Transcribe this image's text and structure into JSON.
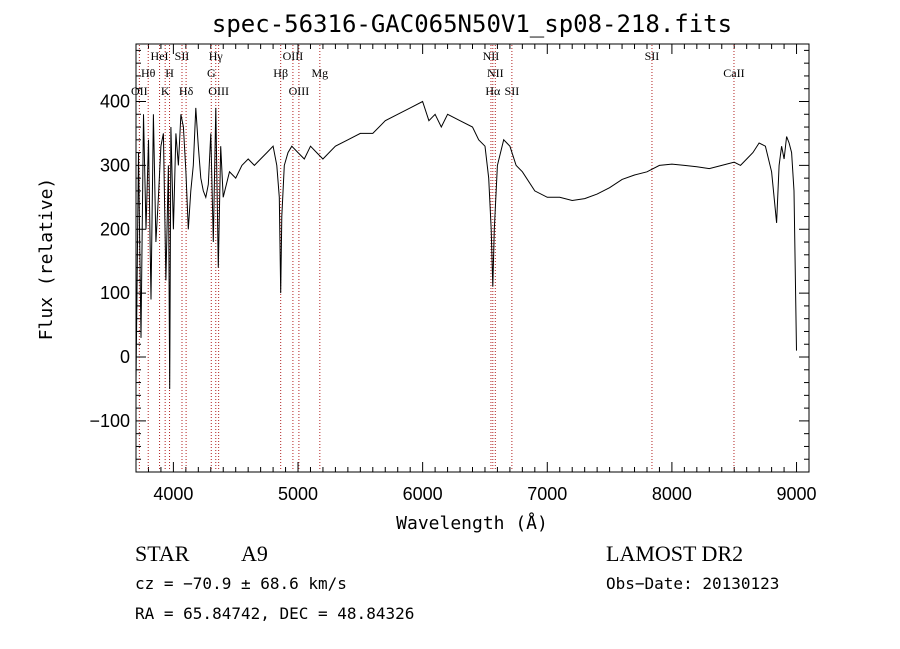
{
  "chart_data": {
    "type": "line",
    "title": "spec-56316-GAC065N50V1_sp08-218.fits",
    "xlabel": "Wavelength (Å)",
    "ylabel": "Flux (relative)",
    "xlim": [
      3700,
      9100
    ],
    "ylim": [
      -180,
      490
    ],
    "x_ticks": [
      4000,
      5000,
      6000,
      7000,
      8000,
      9000
    ],
    "y_ticks": [
      -100,
      0,
      100,
      200,
      300,
      400
    ],
    "grid": false,
    "series": [
      {
        "x": [
          3700,
          3720,
          3740,
          3760,
          3780,
          3800,
          3820,
          3840,
          3860,
          3880,
          3900,
          3920,
          3940,
          3960,
          3970,
          3980,
          4000,
          4020,
          4040,
          4060,
          4080,
          4100,
          4120,
          4140,
          4160,
          4180,
          4200,
          4220,
          4240,
          4260,
          4280,
          4300,
          4320,
          4340,
          4360,
          4380,
          4400,
          4450,
          4500,
          4550,
          4600,
          4650,
          4700,
          4750,
          4800,
          4830,
          4850,
          4861,
          4870,
          4890,
          4920,
          4950,
          5000,
          5050,
          5100,
          5150,
          5200,
          5300,
          5400,
          5500,
          5600,
          5700,
          5800,
          5900,
          6000,
          6050,
          6100,
          6150,
          6200,
          6300,
          6400,
          6450,
          6500,
          6530,
          6550,
          6563,
          6575,
          6600,
          6650,
          6700,
          6750,
          6800,
          6900,
          7000,
          7100,
          7200,
          7300,
          7400,
          7500,
          7600,
          7700,
          7800,
          7900,
          8000,
          8100,
          8200,
          8300,
          8400,
          8500,
          8550,
          8600,
          8650,
          8700,
          8750,
          8800,
          8820,
          8840,
          8860,
          8880,
          8900,
          8920,
          8940,
          8960,
          8980,
          9000
        ],
        "y": [
          -40,
          320,
          30,
          380,
          200,
          340,
          90,
          380,
          180,
          250,
          330,
          350,
          120,
          300,
          -50,
          360,
          200,
          350,
          300,
          380,
          360,
          290,
          200,
          260,
          300,
          390,
          330,
          280,
          260,
          250,
          270,
          350,
          180,
          390,
          140,
          330,
          250,
          290,
          280,
          300,
          310,
          300,
          310,
          320,
          330,
          300,
          250,
          100,
          220,
          300,
          320,
          330,
          320,
          310,
          330,
          320,
          310,
          330,
          340,
          350,
          350,
          370,
          380,
          390,
          400,
          370,
          380,
          360,
          380,
          370,
          360,
          340,
          330,
          280,
          200,
          110,
          200,
          300,
          340,
          330,
          300,
          290,
          260,
          250,
          250,
          245,
          248,
          255,
          265,
          278,
          285,
          290,
          300,
          302,
          300,
          298,
          295,
          300,
          305,
          300,
          310,
          320,
          335,
          330,
          290,
          250,
          210,
          300,
          330,
          310,
          345,
          335,
          320,
          260,
          10
        ]
      }
    ],
    "lines": [
      {
        "wavelength": 3727,
        "label": "OII",
        "row": 3
      },
      {
        "wavelength": 3798,
        "label": "Hθ",
        "row": 1
      },
      {
        "wavelength": 3889,
        "label": "HeI",
        "row": 0
      },
      {
        "wavelength": 3934,
        "label": "K",
        "row": 2
      },
      {
        "wavelength": 3969,
        "label": "H",
        "row": 1
      },
      {
        "wavelength": 4069,
        "label": "SII",
        "row": 0
      },
      {
        "wavelength": 4102,
        "label": "Hδ",
        "row": 2
      },
      {
        "wavelength": 4304,
        "label": "G",
        "row": 1
      },
      {
        "wavelength": 4340,
        "label": "Hγ",
        "row": 0
      },
      {
        "wavelength": 4363,
        "label": "OIII",
        "row": 2
      },
      {
        "wavelength": 4861,
        "label": "Hβ",
        "row": 1
      },
      {
        "wavelength": 4959,
        "label": "OIII",
        "row": 0
      },
      {
        "wavelength": 5007,
        "label": "OIII",
        "row": 2
      },
      {
        "wavelength": 5175,
        "label": "Mg",
        "row": 1
      },
      {
        "wavelength": 6548,
        "label": "NII",
        "row": 0
      },
      {
        "wavelength": 6563,
        "label": "Hα",
        "row": 2
      },
      {
        "wavelength": 6583,
        "label": "NII",
        "row": 1
      },
      {
        "wavelength": 6716,
        "label": "SII",
        "row": 2
      },
      {
        "wavelength": 7840,
        "label": "SII",
        "row": 0
      },
      {
        "wavelength": 8498,
        "label": "CaII",
        "row": 1
      }
    ]
  },
  "info": {
    "class": "STAR",
    "subclass": "A9",
    "survey": "LAMOST DR2",
    "cz": "cz = −70.9 ± 68.6 km/s",
    "obs_date": "Obs−Date: 20130123",
    "coords": "RA =  65.84742, DEC =  48.84326"
  },
  "colors": {
    "spectrum": "#000000",
    "line_marker": "#b22222",
    "text": "#000000"
  }
}
